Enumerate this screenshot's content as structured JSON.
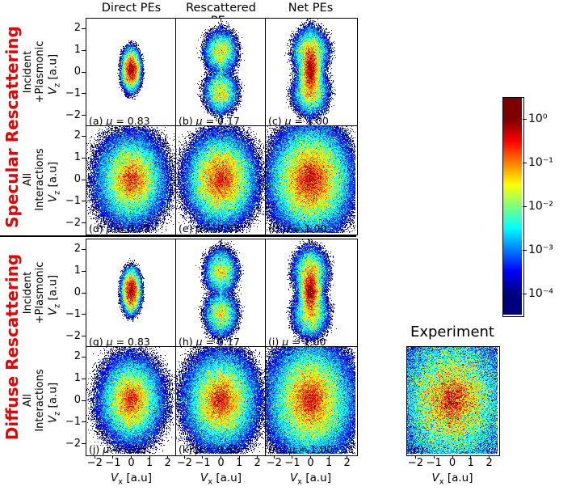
{
  "figure": {
    "column_headers": [
      "Direct PEs",
      "Rescattered PEs",
      "Net PEs"
    ],
    "sections": [
      {
        "label": "Specular Rescattering"
      },
      {
        "label": "Diffuse Rescattering"
      }
    ],
    "row_sublabels": [
      [
        "Incident",
        "+Plasmonic"
      ],
      [
        "All",
        "Interactions"
      ],
      [
        "Incident",
        "+Plasmonic"
      ],
      [
        "All",
        "Interactions"
      ]
    ],
    "experiment_title": "Experiment"
  },
  "colors": {
    "section_label": "#ee0000",
    "text": "#000000",
    "background": "#ffffff",
    "panel_border": "#000000"
  },
  "chart_data": {
    "type": "heatmap",
    "colormap": "jet",
    "scale": "log10",
    "value_range": [
      0.0001,
      1
    ],
    "mu_symbol": "μ",
    "axis": {
      "range": [
        -2.5,
        2.5
      ],
      "x_label": {
        "symbol": "V",
        "sub": "x",
        "unit": "[a.u]"
      },
      "y_label": {
        "symbol": "V",
        "sub": "z",
        "unit": "[a.u]"
      },
      "x_ticks": [
        "−2",
        "−1",
        "0",
        "1",
        "2"
      ],
      "y_ticks": [
        "2",
        "1",
        "0",
        "−1",
        "−2"
      ]
    },
    "colorbar": {
      "orientation": "vertical",
      "tick_labels": [
        "10⁰",
        "10⁻¹",
        "10⁻²",
        "10⁻³",
        "10⁻⁴"
      ]
    },
    "panels": [
      {
        "id": "a",
        "row": 0,
        "col": 0,
        "label": "(a)",
        "mu": "0.83",
        "noise": 0.9,
        "seed": 1,
        "components": [
          {
            "a": 1.2,
            "x": 0,
            "z": 0.1,
            "wx": 0.14,
            "wz": 0.26,
            "p": 1.4
          },
          {
            "a": 0.002,
            "x": 0,
            "z": 0,
            "wx": 0.3,
            "wz": 0.55,
            "p": 2
          }
        ]
      },
      {
        "id": "b",
        "row": 0,
        "col": 1,
        "label": "(b)",
        "mu": "0.17",
        "noise": 0.9,
        "seed": 2,
        "components": [
          {
            "a": 0.045,
            "x": 0,
            "z": 0.95,
            "wx": 0.3,
            "wz": 0.32,
            "p": 1.4
          },
          {
            "a": 0.045,
            "x": 0,
            "z": -0.95,
            "wx": 0.3,
            "wz": 0.32,
            "p": 1.4
          },
          {
            "a": 0.004,
            "x": 0,
            "z": 0,
            "wx": 0.07,
            "wz": 1.2,
            "p": 2
          }
        ]
      },
      {
        "id": "c",
        "row": 0,
        "col": 2,
        "label": "(c)",
        "mu": "1.00",
        "noise": 0.9,
        "seed": 3,
        "components": [
          {
            "a": 1.2,
            "x": 0,
            "z": 0.1,
            "wx": 0.15,
            "wz": 0.38,
            "p": 1.3
          },
          {
            "a": 0.05,
            "x": 0,
            "z": 0.95,
            "wx": 0.32,
            "wz": 0.34,
            "p": 1.4
          },
          {
            "a": 0.05,
            "x": 0,
            "z": -0.95,
            "wx": 0.32,
            "wz": 0.34,
            "p": 1.4
          },
          {
            "a": 0.004,
            "x": 0,
            "z": 0,
            "wx": 0.07,
            "wz": 1.3,
            "p": 2
          }
        ]
      },
      {
        "id": "d",
        "row": 1,
        "col": 0,
        "label": "(d)",
        "mu": "0.33",
        "noise": 0.9,
        "seed": 4,
        "components": [
          {
            "a": 0.4,
            "x": 0,
            "z": 0,
            "wx": 0.29,
            "wz": 0.32,
            "p": 1
          }
        ]
      },
      {
        "id": "e",
        "row": 1,
        "col": 1,
        "label": "(e)",
        "mu": "0.67",
        "noise": 0.9,
        "seed": 5,
        "components": [
          {
            "a": 0.35,
            "x": 0,
            "z": 0,
            "wx": 0.42,
            "wz": 0.46,
            "p": 1.2
          }
        ]
      },
      {
        "id": "f",
        "row": 1,
        "col": 2,
        "label": "(f)",
        "mu": "1.00",
        "noise": 0.9,
        "seed": 6,
        "components": [
          {
            "a": 0.55,
            "x": 0,
            "z": 0,
            "wx": 0.44,
            "wz": 0.48,
            "p": 1.15
          }
        ]
      },
      {
        "id": "g",
        "row": 2,
        "col": 0,
        "label": "(g)",
        "mu": "0.83",
        "noise": 0.9,
        "seed": 7,
        "components": [
          {
            "a": 1.2,
            "x": 0,
            "z": 0.1,
            "wx": 0.14,
            "wz": 0.27,
            "p": 1.4
          },
          {
            "a": 0.002,
            "x": 0,
            "z": 0,
            "wx": 0.3,
            "wz": 0.55,
            "p": 2
          }
        ]
      },
      {
        "id": "h",
        "row": 2,
        "col": 1,
        "label": "(h)",
        "mu": "0.17",
        "noise": 0.9,
        "seed": 8,
        "components": [
          {
            "a": 0.04,
            "x": 0,
            "z": 1.0,
            "wx": 0.3,
            "wz": 0.34,
            "p": 1.4
          },
          {
            "a": 0.04,
            "x": 0,
            "z": -1.0,
            "wx": 0.3,
            "wz": 0.34,
            "p": 1.4
          },
          {
            "a": 0.003,
            "x": 0,
            "z": 0,
            "wx": 0.07,
            "wz": 1.3,
            "p": 2
          }
        ]
      },
      {
        "id": "i",
        "row": 2,
        "col": 2,
        "label": "(i)",
        "mu": "1.00",
        "noise": 0.9,
        "seed": 9,
        "components": [
          {
            "a": 1.2,
            "x": 0,
            "z": 0.1,
            "wx": 0.15,
            "wz": 0.36,
            "p": 1.3
          },
          {
            "a": 0.045,
            "x": 0,
            "z": 1.0,
            "wx": 0.32,
            "wz": 0.36,
            "p": 1.4
          },
          {
            "a": 0.045,
            "x": 0,
            "z": -1.0,
            "wx": 0.32,
            "wz": 0.36,
            "p": 1.4
          }
        ]
      },
      {
        "id": "j",
        "row": 3,
        "col": 0,
        "label": "(j)",
        "mu": "0.35",
        "noise": 0.9,
        "seed": 10,
        "components": [
          {
            "a": 0.45,
            "x": 0,
            "z": 0,
            "wx": 0.26,
            "wz": 0.3,
            "p": 1
          }
        ]
      },
      {
        "id": "k",
        "row": 3,
        "col": 1,
        "label": "(k)",
        "mu": "0.65",
        "noise": 0.9,
        "seed": 11,
        "components": [
          {
            "a": 0.45,
            "x": 0,
            "z": 0,
            "wx": 0.33,
            "wz": 0.37,
            "p": 1.05
          }
        ]
      },
      {
        "id": "m",
        "row": 3,
        "col": 2,
        "label": "(m)",
        "mu": "1.00",
        "noise": 0.9,
        "seed": 12,
        "components": [
          {
            "a": 0.55,
            "x": 0,
            "z": 0,
            "wx": 0.35,
            "wz": 0.4,
            "p": 1
          }
        ]
      },
      {
        "id": "n",
        "row": 3,
        "col": 3,
        "label": "(n)",
        "mu": null,
        "noise": 1.3,
        "seed": 13,
        "components": [
          {
            "a": 0.6,
            "x": 0,
            "z": 0,
            "wx": 0.32,
            "wz": 0.34,
            "p": 0.85
          }
        ]
      }
    ]
  }
}
